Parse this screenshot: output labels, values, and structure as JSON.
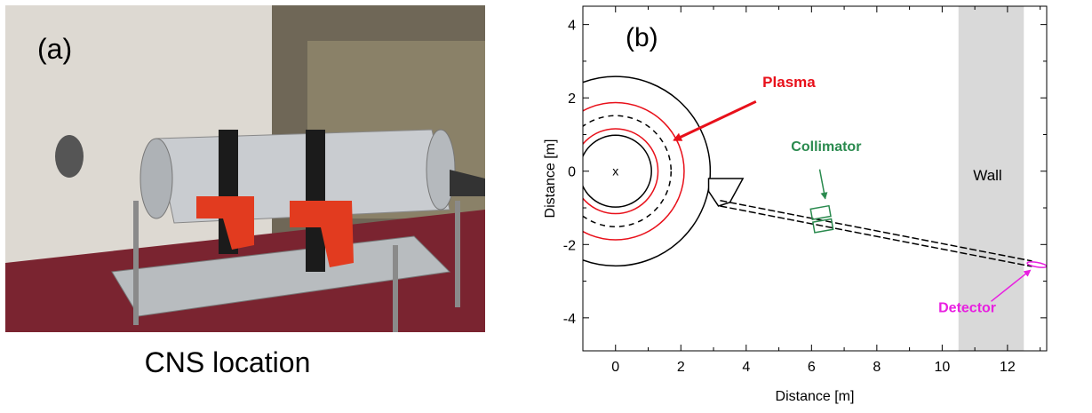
{
  "panel_a": {
    "label": "(a)",
    "caption": "CNS location",
    "colors": {
      "wall": "#e6e3de",
      "floor": "#7a2430",
      "cylinder": "#c9ccd0",
      "mount": "#e23b1f",
      "strap": "#1b1b1b",
      "plate": "#b8bcbf"
    }
  },
  "panel_b": {
    "label": "(b)",
    "xlabel": "Distance [m]",
    "ylabel": "Distance [m]",
    "xlim": [
      -1,
      13.2
    ],
    "ylim": [
      -4.9,
      4.5
    ],
    "xticks": [
      "0",
      "2",
      "4",
      "6",
      "8",
      "10",
      "12"
    ],
    "yticks": [
      "4",
      "2",
      "0",
      "-2",
      "-4"
    ],
    "wall": {
      "label": "Wall",
      "x_range": [
        10.5,
        12.5
      ],
      "color": "#d9d9d9"
    },
    "center_marker": "x",
    "plasma": {
      "label": "Plasma",
      "color": "#e8101a"
    },
    "collimator": {
      "label": "Collimator",
      "color": "#2a8a4e",
      "position": [
        6.3,
        -1.3
      ]
    },
    "detector": {
      "label": "Detector",
      "color": "#e820e0",
      "position": [
        12.9,
        -2.55
      ]
    },
    "circles": {
      "inner_vessel_radius": 1.1,
      "plasma_inner_radius": 1.3,
      "plasma_outer_radius": 2.1,
      "dashed_radius": 1.7,
      "outer_vessel_radius": 2.9
    }
  }
}
